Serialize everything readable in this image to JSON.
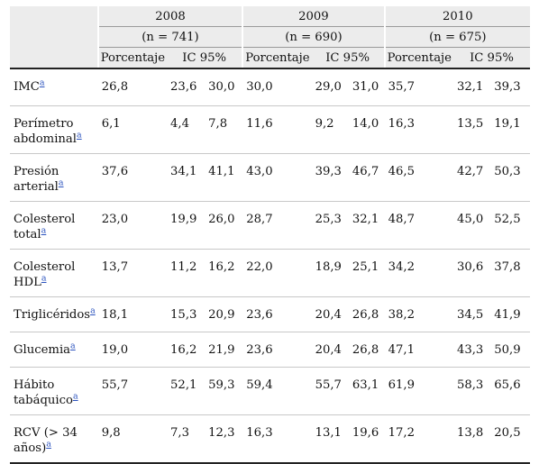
{
  "years": [
    "2008",
    "2009",
    "2010"
  ],
  "n_values": [
    "(n = 741)",
    "(n = 690)",
    "(n = 675)"
  ],
  "sub_headers": {
    "pct": "Porcentaje",
    "ci": "IC 95%"
  },
  "rows": [
    {
      "label": "IMC",
      "note": "a",
      "vals": [
        "26,8",
        "23,6",
        "30,0",
        "30,0",
        "29,0",
        "31,0",
        "35,7",
        "32,1",
        "39,3"
      ]
    },
    {
      "label": "Perímetro abdominal",
      "note": "a",
      "vals": [
        "6,1",
        "4,4",
        "7,8",
        "11,6",
        "9,2",
        "14,0",
        "16,3",
        "13,5",
        "19,1"
      ]
    },
    {
      "label": "Presión arterial",
      "note": "a",
      "vals": [
        "37,6",
        "34,1",
        "41,1",
        "43,0",
        "39,3",
        "46,7",
        "46,5",
        "42,7",
        "50,3"
      ]
    },
    {
      "label": "Colesterol total",
      "note": "a",
      "vals": [
        "23,0",
        "19,9",
        "26,0",
        "28,7",
        "25,3",
        "32,1",
        "48,7",
        "45,0",
        "52,5"
      ]
    },
    {
      "label": "Colesterol HDL",
      "note": "a",
      "vals": [
        "13,7",
        "11,2",
        "16,2",
        "22,0",
        "18,9",
        "25,1",
        "34,2",
        "30,6",
        "37,8"
      ]
    },
    {
      "label": "Triglicéridos",
      "note": "a",
      "vals": [
        "18,1",
        "15,3",
        "20,9",
        "23,6",
        "20,4",
        "26,8",
        "38,2",
        "34,5",
        "41,9"
      ]
    },
    {
      "label": "Glucemia",
      "note": "a",
      "vals": [
        "19,0",
        "16,2",
        "21,9",
        "23,6",
        "20,4",
        "26,8",
        "47,1",
        "43,3",
        "50,9"
      ]
    },
    {
      "label": "Hábito tabáquico",
      "note": "a",
      "vals": [
        "55,7",
        "52,1",
        "59,3",
        "59,4",
        "55,7",
        "63,1",
        "61,9",
        "58,3",
        "65,6"
      ]
    },
    {
      "label": "RCV (> 34 años)",
      "note": "a",
      "vals": [
        "9,8",
        "7,3",
        "12,3",
        "16,3",
        "13,1",
        "19,6",
        "17,2",
        "13,8",
        "20,5"
      ]
    }
  ]
}
